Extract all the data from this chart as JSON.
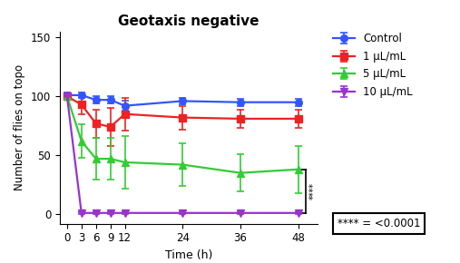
{
  "title": "Geotaxis negative",
  "xlabel": "Time (h)",
  "ylabel": "Number of flies on topo",
  "xlim": [
    -1.5,
    52
  ],
  "ylim": [
    -8,
    155
  ],
  "yticks": [
    0,
    50,
    100,
    150
  ],
  "xticks": [
    0,
    3,
    6,
    9,
    12,
    24,
    36,
    48
  ],
  "time_points": [
    0,
    3,
    6,
    9,
    12,
    24,
    36,
    48
  ],
  "series": [
    {
      "label": "Control",
      "color": "#3355FF",
      "marker": "o",
      "y": [
        101,
        101,
        97,
        97,
        92,
        96,
        95,
        95
      ],
      "yerr": [
        2,
        2,
        3,
        3,
        4,
        3,
        3,
        3
      ]
    },
    {
      "label": "1 μL/mL",
      "color": "#EE2222",
      "marker": "s",
      "y": [
        100,
        93,
        77,
        74,
        85,
        82,
        81,
        81
      ],
      "yerr": [
        2,
        8,
        12,
        16,
        14,
        10,
        8,
        8
      ]
    },
    {
      "label": "5 μL/mL",
      "color": "#33CC33",
      "marker": "^",
      "y": [
        100,
        62,
        47,
        47,
        44,
        42,
        35,
        38
      ],
      "yerr": [
        2,
        14,
        18,
        18,
        22,
        18,
        16,
        20
      ]
    },
    {
      "label": "10 μL/mL",
      "color": "#9933CC",
      "marker": "v",
      "y": [
        100,
        1,
        1,
        1,
        1,
        1,
        1,
        1
      ],
      "yerr": [
        2,
        1,
        1,
        1,
        1,
        1,
        1,
        1
      ]
    }
  ],
  "bracket_y_top": 38,
  "bracket_y_bot": 1,
  "sig_label": "****",
  "significance_text": "**** = <0.0001"
}
